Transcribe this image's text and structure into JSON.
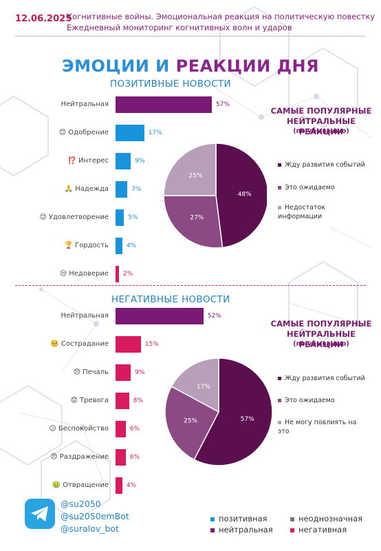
{
  "header": {
    "date": "12.06.2025",
    "line1": "Когнитивные войны. Эмоциональная реакция на политическую повестку",
    "line2": "Ежедневный мониторинг когнитивных волн и ударов"
  },
  "main_title": {
    "part1": "ЭМОЦИИ И ",
    "part2": "РЕАКЦИИ ДНЯ"
  },
  "colors": {
    "positive": "#1a93dd",
    "neutral": "#7a1a74",
    "negative": "#d81b60",
    "ambiguous": "#777777",
    "pie_neutral_1": "#5c0f4e",
    "pie_neutral_2": "#8c4a85",
    "pie_neutral_3": "#b89fb9"
  },
  "positive_section": {
    "title": "ПОЗИТИВНЫЕ НОВОСТИ",
    "side_title": "САМЫЕ ПОПУЛЯРНЫЕ НЕЙТРАЛЬНЫЕ РЕАКЦИИ",
    "side_sub": "(по убыванию)"
  },
  "negative_section": {
    "title": "НЕГАТИВНЫЕ НОВОСТИ",
    "side_title": "САМЫЕ ПОПУЛЯРНЫЕ НЕЙТРАЛЬНЫЕ РЕАКЦИИ",
    "side_sub": "(по убыванию)"
  },
  "chart_data": [
    {
      "type": "bar",
      "orientation": "horizontal",
      "section": "positive",
      "categories": [
        {
          "label": "Нейтральная",
          "emoji": "",
          "value": 57,
          "value_label": "57%",
          "kind": "neutral"
        },
        {
          "label": "Одобрение",
          "emoji": "😊",
          "value": 17,
          "value_label": "17%",
          "kind": "positive"
        },
        {
          "label": "Интерес",
          "emoji": "⁉️",
          "value": 9,
          "value_label": "9%",
          "kind": "positive"
        },
        {
          "label": "Надежда",
          "emoji": "🙏",
          "value": 7,
          "value_label": "7%",
          "kind": "positive"
        },
        {
          "label": "Удовлетворение",
          "emoji": "😌",
          "value": 5,
          "value_label": "5%",
          "kind": "positive"
        },
        {
          "label": "Гордость",
          "emoji": "🏆",
          "value": 4,
          "value_label": "4%",
          "kind": "positive"
        },
        {
          "label": "Недоверие",
          "emoji": "😒",
          "value": 2,
          "value_label": "2%",
          "kind": "negative"
        }
      ]
    },
    {
      "type": "pie",
      "section": "positive",
      "slices": [
        {
          "label": "Жду развития событий",
          "value": 48,
          "value_label": "48%",
          "color": "#5c0f4e"
        },
        {
          "label": "Это ожидаемо",
          "value": 27,
          "value_label": "27%",
          "color": "#8c4a85"
        },
        {
          "label": "Недостаток информации",
          "value": 25,
          "value_label": "25%",
          "color": "#b89fb9"
        }
      ]
    },
    {
      "type": "bar",
      "orientation": "horizontal",
      "section": "negative",
      "categories": [
        {
          "label": "Нейтральная",
          "emoji": "",
          "value": 52,
          "value_label": "52%",
          "kind": "neutral"
        },
        {
          "label": "Сострадание",
          "emoji": "🥺",
          "value": 15,
          "value_label": "15%",
          "kind": "negative"
        },
        {
          "label": "Печаль",
          "emoji": "😞",
          "value": 9,
          "value_label": "9%",
          "kind": "negative"
        },
        {
          "label": "Тревога",
          "emoji": "😟",
          "value": 8,
          "value_label": "8%",
          "kind": "negative"
        },
        {
          "label": "Беспокойство",
          "emoji": "😕",
          "value": 6,
          "value_label": "6%",
          "kind": "negative"
        },
        {
          "label": "Раздражение",
          "emoji": "😠",
          "value": 6,
          "value_label": "6%",
          "kind": "negative"
        },
        {
          "label": "Отвращение",
          "emoji": "🤢",
          "value": 4,
          "value_label": "4%",
          "kind": "negative"
        }
      ]
    },
    {
      "type": "pie",
      "section": "negative",
      "slices": [
        {
          "label": "Жду развития событий",
          "value": 57,
          "value_label": "57%",
          "color": "#5c0f4e"
        },
        {
          "label": "Это ожидаемо",
          "value": 25,
          "value_label": "25%",
          "color": "#8c4a85"
        },
        {
          "label": "Не могу повлиять на это",
          "value": 17,
          "value_label": "17%",
          "color": "#b89fb9"
        }
      ]
    }
  ],
  "footer": {
    "handles": [
      "@su2050",
      "@su2050emBot",
      "@suralov_bot"
    ],
    "legend": [
      {
        "label": "позитивная",
        "color": "#1a93dd"
      },
      {
        "label": "неоднозначная",
        "color": "#777777"
      },
      {
        "label": "нейтральная",
        "color": "#7a1a74"
      },
      {
        "label": "негативная",
        "color": "#d81b60"
      }
    ]
  }
}
